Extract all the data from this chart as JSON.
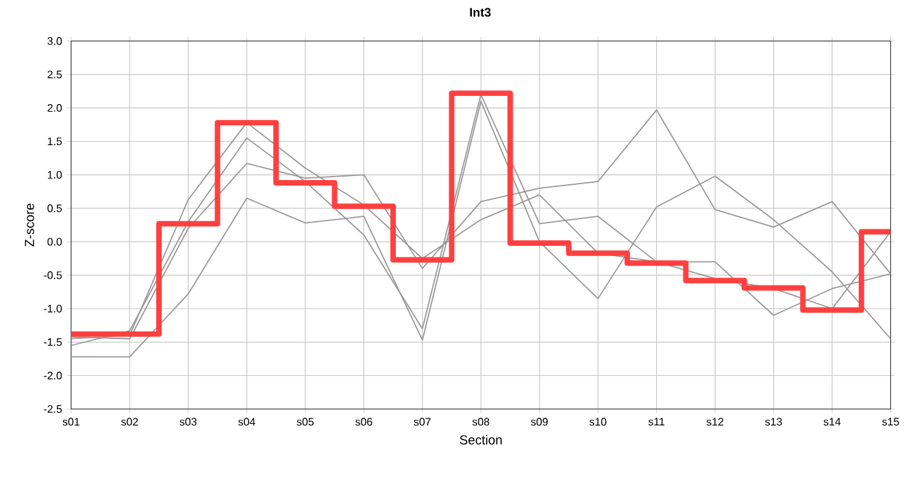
{
  "chart_data": {
    "type": "line",
    "title": "Int3",
    "xlabel": "Section",
    "ylabel": "Z-score",
    "categories": [
      "s01",
      "s02",
      "s03",
      "s04",
      "s05",
      "s06",
      "s07",
      "s08",
      "s09",
      "s10",
      "s11",
      "s12",
      "s13",
      "s14",
      "s15"
    ],
    "series": [
      {
        "color": "#999999",
        "values": [
          -1.45,
          -1.4,
          0.63,
          1.78,
          1.1,
          0.55,
          -0.25,
          0.33,
          0.7,
          -0.17,
          -0.3,
          -0.55,
          -0.7,
          -1.0,
          0.15
        ]
      },
      {
        "color": "#999999",
        "values": [
          -1.55,
          -1.33,
          0.3,
          1.55,
          0.9,
          0.1,
          -1.3,
          2.2,
          0.27,
          0.38,
          -0.3,
          -0.3,
          -1.1,
          -0.7,
          -0.48
        ]
      },
      {
        "color": "#999999",
        "values": [
          -1.42,
          -1.45,
          0.2,
          1.17,
          0.95,
          1.0,
          -0.4,
          0.6,
          0.8,
          0.9,
          1.97,
          0.48,
          0.22,
          0.6,
          -0.48
        ]
      },
      {
        "color": "#999999",
        "values": [
          -1.72,
          -1.72,
          -0.78,
          0.65,
          0.28,
          0.38,
          -1.47,
          2.1,
          0.0,
          -0.85,
          0.52,
          0.98,
          0.33,
          -0.45,
          -1.45
        ]
      },
      {
        "type": "step",
        "color": "#ff4040",
        "values": [
          -1.38,
          -1.38,
          0.27,
          1.78,
          0.88,
          0.53,
          -0.27,
          2.22,
          -0.02,
          -0.17,
          -0.32,
          -0.58,
          -0.69,
          -1.02,
          0.15
        ]
      }
    ],
    "ylim": [
      -2.5,
      3.0
    ],
    "yticks": [
      {
        "value": -2.5,
        "label": "-2.5"
      },
      {
        "value": -2,
        "label": "-2.0"
      },
      {
        "value": -1.5,
        "label": "-1.5"
      },
      {
        "value": -1,
        "label": "-1.0"
      },
      {
        "value": -0.5,
        "label": "-0.5"
      },
      {
        "value": 0,
        "label": "0.0"
      },
      {
        "value": 0.5,
        "label": "0.5"
      },
      {
        "value": 1,
        "label": "1.0"
      },
      {
        "value": 1.5,
        "label": "1.5"
      },
      {
        "value": 2,
        "label": "2.0"
      },
      {
        "value": 2.5,
        "label": "2.5"
      },
      {
        "value": 3,
        "label": "3.0"
      }
    ],
    "grid": true,
    "marker": "none",
    "line_style": "solid"
  }
}
